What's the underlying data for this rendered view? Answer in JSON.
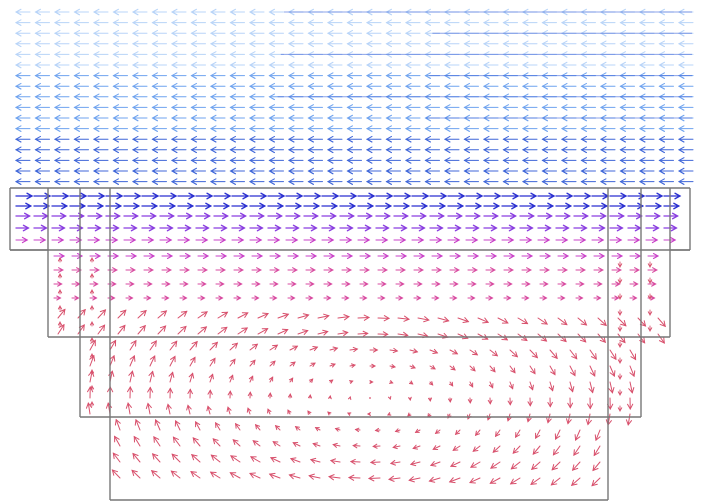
{
  "figure": {
    "kind": "vector-field-cavity-flow",
    "colors": {
      "background": "#ffffff",
      "outline": "#777777",
      "arrow_scale": [
        "#b8d4f8",
        "#6fa3ef",
        "#3f66d8",
        "#2a2fd0",
        "#8a3ee0",
        "#c940c8",
        "#d84aa0",
        "#d8506c"
      ]
    },
    "outline_levels": 4
  }
}
